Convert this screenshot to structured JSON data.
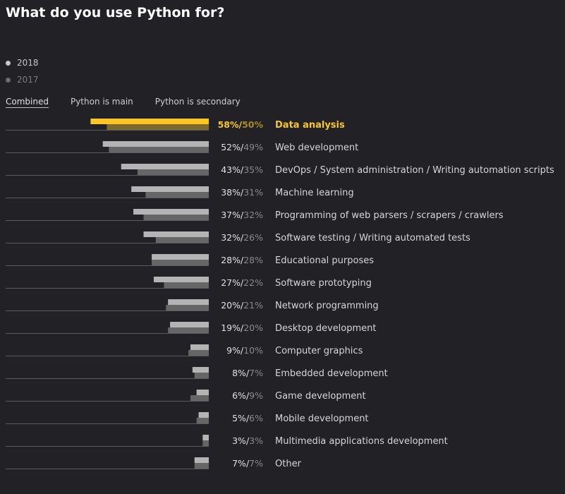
{
  "title": "What do you use Python for?",
  "legend": [
    {
      "label": "2018",
      "color": "#c8c8c8"
    },
    {
      "label": "2017",
      "color": "#6e6e6e"
    }
  ],
  "tabs": [
    {
      "label": "Combined",
      "active": true
    },
    {
      "label": "Python is main",
      "active": false
    },
    {
      "label": "Python is secondary",
      "active": false
    }
  ],
  "chart_data": {
    "type": "bar",
    "orientation": "horizontal",
    "highlight_index": 0,
    "colors": {
      "series_2018": "#b4b4b4",
      "series_2017": "#666666",
      "highlight_2018": "#f9c623",
      "highlight_2017": "#7d6a2a"
    },
    "categories": [
      "Data analysis",
      "Web development",
      "DevOps / System administration / Writing automation scripts",
      "Machine learning",
      "Programming of web parsers / scrapers / crawlers",
      "Software testing / Writing automated tests",
      "Educational purposes",
      "Software prototyping",
      "Network programming",
      "Desktop development",
      "Computer graphics",
      "Embedded development",
      "Game development",
      "Mobile development",
      "Multimedia applications development",
      "Other"
    ],
    "series": [
      {
        "name": "2018",
        "values": [
          58,
          52,
          43,
          38,
          37,
          32,
          28,
          27,
          20,
          19,
          9,
          8,
          6,
          5,
          3,
          7
        ]
      },
      {
        "name": "2017",
        "values": [
          50,
          49,
          35,
          31,
          32,
          26,
          28,
          22,
          21,
          20,
          10,
          7,
          9,
          6,
          3,
          7
        ]
      }
    ],
    "value_suffix": "%",
    "value_separator": "/"
  }
}
